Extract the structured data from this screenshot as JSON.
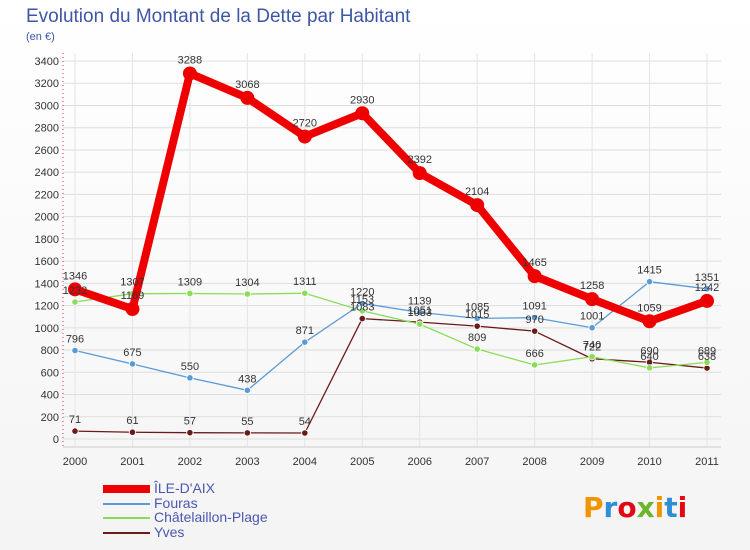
{
  "chart_data": {
    "type": "line",
    "title": "Evolution du Montant de la Dette par Habitant",
    "subtitle": "(en €)",
    "x": [
      "2000",
      "2001",
      "2002",
      "2003",
      "2004",
      "2005",
      "2006",
      "2007",
      "2008",
      "2009",
      "2010",
      "2011"
    ],
    "ylim": [
      0,
      3400
    ],
    "yticks": [
      0,
      200,
      400,
      600,
      800,
      1000,
      1200,
      1400,
      1600,
      1800,
      2000,
      2200,
      2400,
      2600,
      2800,
      3000,
      3200,
      3400
    ],
    "grid": true,
    "legend_position": "bottom-left",
    "series": [
      {
        "name": "ÎLE-D'AIX",
        "color": "#ee0000",
        "values": [
          1346,
          1169,
          3288,
          3068,
          2720,
          2930,
          2392,
          2104,
          1465,
          1258,
          1059,
          1242
        ]
      },
      {
        "name": "Fouras",
        "color": "#5b9bd5",
        "values": [
          796,
          675,
          550,
          438,
          871,
          1220,
          1139,
          1085,
          1091,
          1001,
          1415,
          1351
        ]
      },
      {
        "name": "Châtelaillon-Plage",
        "color": "#88dd55",
        "values": [
          1232,
          1307,
          1309,
          1304,
          1311,
          1153,
          1033,
          809,
          666,
          740,
          640,
          689
        ]
      },
      {
        "name": "Yves",
        "color": "#6b1a1a",
        "values": [
          71,
          61,
          57,
          55,
          54,
          1083,
          1051,
          1015,
          970,
          722,
          690,
          638
        ]
      }
    ]
  },
  "brand": {
    "text": "Proxiti",
    "colors": [
      "#f29400",
      "#2f8fd6",
      "#e30613",
      "#6cb52d"
    ]
  }
}
